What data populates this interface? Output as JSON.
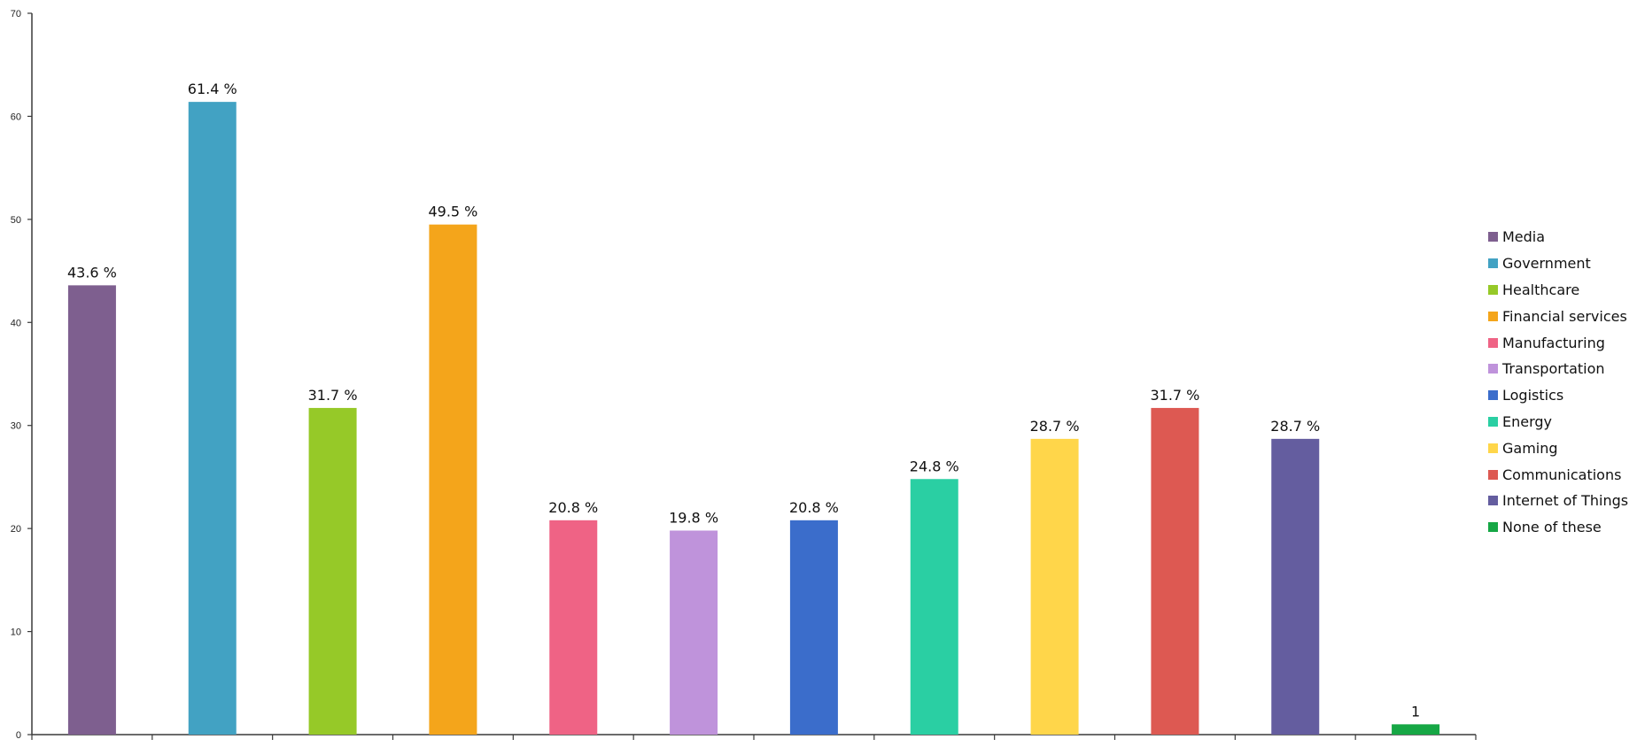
{
  "chart_data": {
    "type": "bar",
    "categories": [
      "Media",
      "Government",
      "Healthcare",
      "Financial services",
      "Manufacturing",
      "Transportation",
      "Logistics",
      "Energy",
      "Gaming",
      "Communications",
      "Internet of Things",
      "None of these"
    ],
    "values": [
      43.6,
      61.4,
      31.7,
      49.5,
      20.8,
      19.8,
      20.8,
      24.8,
      28.7,
      31.7,
      28.7,
      1
    ],
    "data_labels": [
      "43.6 %",
      "61.4 %",
      "31.7 %",
      "49.5 %",
      "20.8 %",
      "19.8 %",
      "20.8 %",
      "24.8 %",
      "28.7 %",
      "31.7 %",
      "28.7 %",
      "1"
    ],
    "colors": [
      "#7e5f8f",
      "#42a2c3",
      "#96c928",
      "#f4a51b",
      "#ef6385",
      "#bf93db",
      "#3b6dcb",
      "#2acfa3",
      "#ffd64a",
      "#dd5952",
      "#645d9f",
      "#16a745"
    ],
    "y_ticks": [
      "0",
      "10",
      "20",
      "30",
      "40",
      "50",
      "60",
      "70"
    ],
    "ylim": [
      0,
      70
    ],
    "title": "",
    "xlabel": "",
    "ylabel": "",
    "grid": false,
    "legend_position": "right"
  }
}
